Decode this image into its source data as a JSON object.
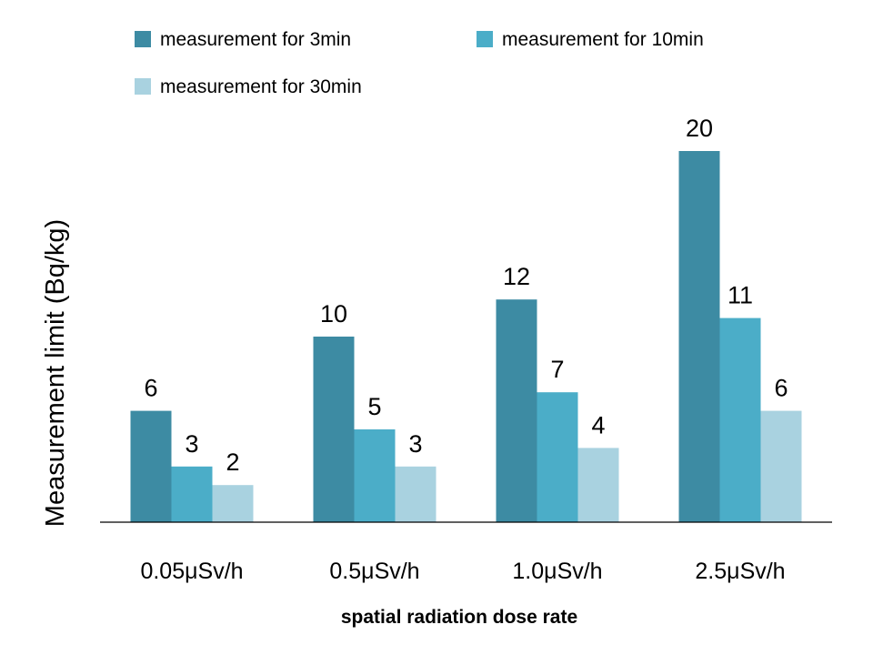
{
  "chart_data": {
    "type": "bar",
    "title": "",
    "xlabel": "spatial radiation dose rate",
    "ylabel": "Measurement limit (Bq/kg)",
    "categories": [
      "0.05μSv/h",
      "0.5μSv/h",
      "1.0μSv/h",
      "2.5μSv/h"
    ],
    "series": [
      {
        "name": "measurement for 3min",
        "values": [
          6,
          10,
          12,
          20
        ],
        "color": "#3d8ba3"
      },
      {
        "name": "measurement for 10min",
        "values": [
          3,
          5,
          7,
          11
        ],
        "color": "#4badc8"
      },
      {
        "name": "measurement for 30min",
        "values": [
          2,
          3,
          4,
          6
        ],
        "color": "#a9d2e0"
      }
    ],
    "ylim": [
      0,
      20
    ],
    "grid": false,
    "legend_position": "top",
    "data_labels": true
  }
}
